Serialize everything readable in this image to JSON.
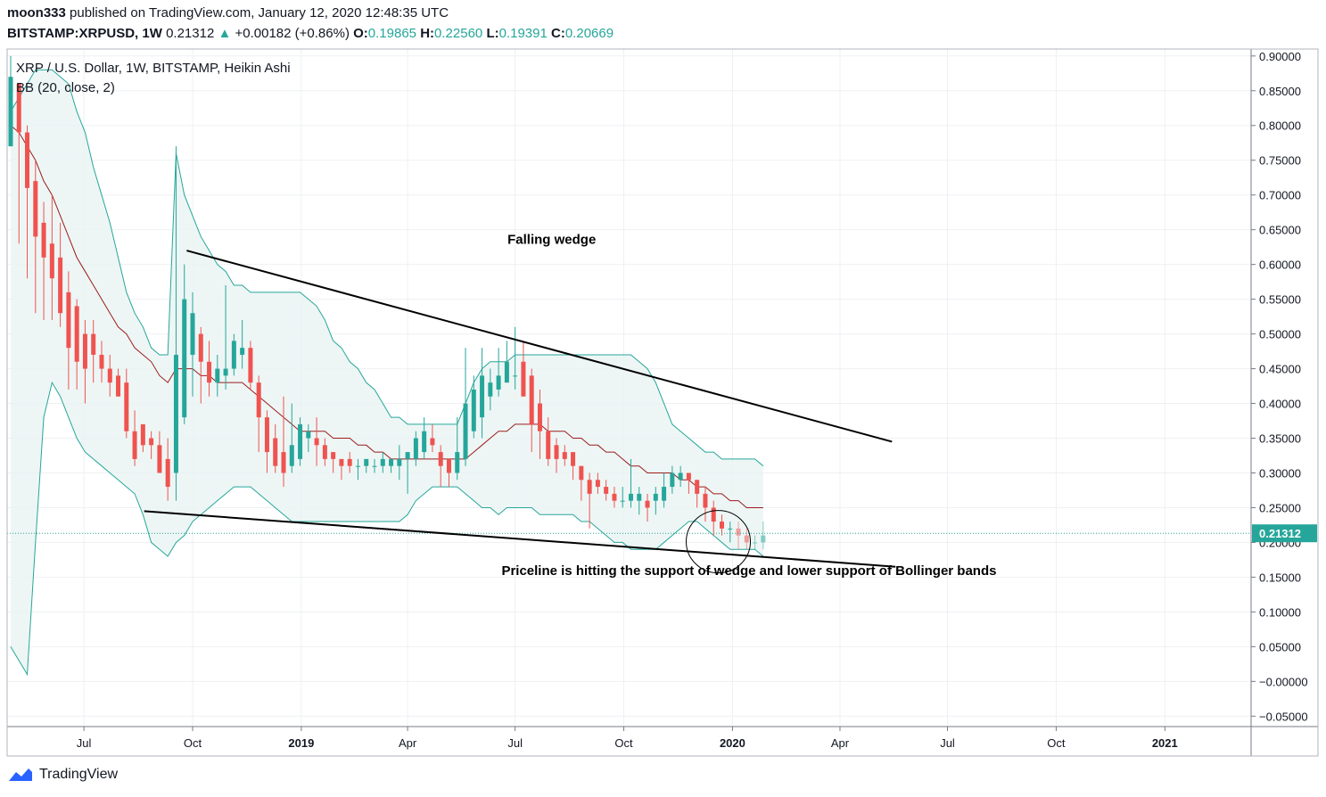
{
  "header": {
    "publisher": "moon333",
    "published_text": "published on TradingView.com, January 12, 2020 12:48:35 UTC",
    "symbol": "BITSTAMP:XRPUSD, 1W",
    "last": "0.21312",
    "change": "+0.00182 (+0.86%)",
    "ohlc": [
      {
        "k": "O:",
        "v": "0.19865"
      },
      {
        "k": "H:",
        "v": "0.22560"
      },
      {
        "k": "L:",
        "v": "0.19391"
      },
      {
        "k": "C:",
        "v": "0.20669"
      }
    ]
  },
  "footer": {
    "brand": "TradingView"
  },
  "colors": {
    "up": "#26a69a",
    "down": "#ef5350",
    "band_fill": "#e8f4f2",
    "band_line": "#26a69a",
    "basis": "#9c1c1c",
    "axis": "#787b86",
    "grid": "#eef0f3"
  },
  "chart_data": {
    "type": "candlestick",
    "title": "XRP / U.S. Dollar, 1W, BITSTAMP, Heikin Ashi",
    "indicator": "BB (20, close, 2)",
    "y_ticks": [
      "0.90000",
      "0.85000",
      "0.80000",
      "0.75000",
      "0.70000",
      "0.65000",
      "0.60000",
      "0.55000",
      "0.50000",
      "0.45000",
      "0.40000",
      "0.35000",
      "0.30000",
      "0.25000",
      "0.20000",
      "0.15000",
      "0.10000",
      "0.05000",
      "−0.00000",
      "−0.05000"
    ],
    "y_tick_values": [
      0.9,
      0.85,
      0.8,
      0.75,
      0.7,
      0.65,
      0.6,
      0.55,
      0.5,
      0.45,
      0.4,
      0.35,
      0.3,
      0.25,
      0.2,
      0.15,
      0.1,
      0.05,
      0,
      -0.05
    ],
    "ylim": [
      -0.065,
      0.91
    ],
    "x_range": [
      "2018-04-27",
      "2021-03-15"
    ],
    "x_ticks": [
      {
        "label": "Jul",
        "date": "2018-07-01",
        "bold": false
      },
      {
        "label": "Oct",
        "date": "2018-10-01",
        "bold": false
      },
      {
        "label": "2019",
        "date": "2019-01-01",
        "bold": true
      },
      {
        "label": "Apr",
        "date": "2019-04-01",
        "bold": false
      },
      {
        "label": "Jul",
        "date": "2019-07-01",
        "bold": false
      },
      {
        "label": "Oct",
        "date": "2019-10-01",
        "bold": false
      },
      {
        "label": "2020",
        "date": "2020-01-01",
        "bold": true
      },
      {
        "label": "Apr",
        "date": "2020-04-01",
        "bold": false
      },
      {
        "label": "Jul",
        "date": "2020-07-01",
        "bold": false
      },
      {
        "label": "Oct",
        "date": "2020-10-01",
        "bold": false
      },
      {
        "label": "2021",
        "date": "2021-01-01",
        "bold": true
      }
    ],
    "last_price": "0.21312",
    "last_price_value": 0.21312,
    "candles_start": "2018-04-30",
    "candles": [
      [
        0.77,
        0.87,
        0.9,
        0.77
      ],
      [
        0.86,
        0.79,
        0.82,
        0.63
      ],
      [
        0.79,
        0.71,
        0.8,
        0.58
      ],
      [
        0.72,
        0.64,
        0.75,
        0.53
      ],
      [
        0.66,
        0.61,
        0.69,
        0.52
      ],
      [
        0.63,
        0.58,
        0.7,
        0.52
      ],
      [
        0.61,
        0.53,
        0.66,
        0.51
      ],
      [
        0.56,
        0.48,
        0.59,
        0.42
      ],
      [
        0.54,
        0.46,
        0.55,
        0.42
      ],
      [
        0.5,
        0.45,
        0.52,
        0.4
      ],
      [
        0.5,
        0.47,
        0.52,
        0.43
      ],
      [
        0.47,
        0.45,
        0.49,
        0.43
      ],
      [
        0.45,
        0.43,
        0.47,
        0.41
      ],
      [
        0.44,
        0.41,
        0.45,
        0.41
      ],
      [
        0.43,
        0.36,
        0.45,
        0.35
      ],
      [
        0.36,
        0.32,
        0.39,
        0.31
      ],
      [
        0.37,
        0.34,
        0.37,
        0.33
      ],
      [
        0.35,
        0.34,
        0.36,
        0.32
      ],
      [
        0.34,
        0.3,
        0.36,
        0.3
      ],
      [
        0.32,
        0.28,
        0.35,
        0.26
      ],
      [
        0.3,
        0.47,
        0.77,
        0.26
      ],
      [
        0.38,
        0.55,
        0.6,
        0.37
      ],
      [
        0.47,
        0.53,
        0.56,
        0.41
      ],
      [
        0.5,
        0.46,
        0.51,
        0.4
      ],
      [
        0.46,
        0.43,
        0.49,
        0.41
      ],
      [
        0.43,
        0.45,
        0.47,
        0.41
      ],
      [
        0.44,
        0.45,
        0.57,
        0.42
      ],
      [
        0.45,
        0.49,
        0.5,
        0.44
      ],
      [
        0.47,
        0.48,
        0.52,
        0.45
      ],
      [
        0.48,
        0.43,
        0.49,
        0.42
      ],
      [
        0.43,
        0.38,
        0.44,
        0.33
      ],
      [
        0.38,
        0.33,
        0.39,
        0.3
      ],
      [
        0.35,
        0.31,
        0.37,
        0.3
      ],
      [
        0.33,
        0.3,
        0.41,
        0.28
      ],
      [
        0.31,
        0.34,
        0.4,
        0.3
      ],
      [
        0.32,
        0.37,
        0.38,
        0.31
      ],
      [
        0.35,
        0.36,
        0.37,
        0.33
      ],
      [
        0.35,
        0.34,
        0.38,
        0.31
      ],
      [
        0.34,
        0.32,
        0.35,
        0.31
      ],
      [
        0.33,
        0.32,
        0.33,
        0.3
      ],
      [
        0.32,
        0.31,
        0.32,
        0.29
      ],
      [
        0.32,
        0.31,
        0.33,
        0.3
      ],
      [
        0.31,
        0.31,
        0.32,
        0.29
      ],
      [
        0.31,
        0.32,
        0.32,
        0.3
      ],
      [
        0.31,
        0.31,
        0.32,
        0.3
      ],
      [
        0.31,
        0.32,
        0.33,
        0.3
      ],
      [
        0.31,
        0.32,
        0.32,
        0.3
      ],
      [
        0.31,
        0.32,
        0.34,
        0.29
      ],
      [
        0.32,
        0.33,
        0.33,
        0.27
      ],
      [
        0.32,
        0.35,
        0.36,
        0.31
      ],
      [
        0.33,
        0.36,
        0.38,
        0.32
      ],
      [
        0.35,
        0.34,
        0.37,
        0.33
      ],
      [
        0.33,
        0.31,
        0.34,
        0.28
      ],
      [
        0.32,
        0.3,
        0.32,
        0.28
      ],
      [
        0.3,
        0.33,
        0.38,
        0.29
      ],
      [
        0.32,
        0.4,
        0.48,
        0.31
      ],
      [
        0.36,
        0.42,
        0.44,
        0.35
      ],
      [
        0.38,
        0.44,
        0.48,
        0.35
      ],
      [
        0.41,
        0.43,
        0.45,
        0.39
      ],
      [
        0.42,
        0.44,
        0.48,
        0.41
      ],
      [
        0.43,
        0.46,
        0.49,
        0.43
      ],
      [
        0.44,
        0.44,
        0.51,
        0.42
      ],
      [
        0.46,
        0.41,
        0.49,
        0.41
      ],
      [
        0.44,
        0.37,
        0.45,
        0.33
      ],
      [
        0.4,
        0.36,
        0.42,
        0.32
      ],
      [
        0.36,
        0.32,
        0.38,
        0.31
      ],
      [
        0.34,
        0.32,
        0.35,
        0.3
      ],
      [
        0.33,
        0.32,
        0.34,
        0.31
      ],
      [
        0.33,
        0.31,
        0.32,
        0.29
      ],
      [
        0.31,
        0.29,
        0.31,
        0.26
      ],
      [
        0.29,
        0.27,
        0.3,
        0.22
      ],
      [
        0.29,
        0.28,
        0.3,
        0.27
      ],
      [
        0.28,
        0.27,
        0.29,
        0.26
      ],
      [
        0.27,
        0.26,
        0.28,
        0.25
      ],
      [
        0.26,
        0.26,
        0.28,
        0.25
      ],
      [
        0.26,
        0.27,
        0.32,
        0.25
      ],
      [
        0.26,
        0.27,
        0.28,
        0.24
      ],
      [
        0.26,
        0.25,
        0.27,
        0.23
      ],
      [
        0.26,
        0.27,
        0.28,
        0.24
      ],
      [
        0.26,
        0.28,
        0.3,
        0.25
      ],
      [
        0.28,
        0.3,
        0.31,
        0.27
      ],
      [
        0.29,
        0.3,
        0.31,
        0.28
      ],
      [
        0.3,
        0.29,
        0.3,
        0.27
      ],
      [
        0.29,
        0.27,
        0.29,
        0.25
      ],
      [
        0.27,
        0.25,
        0.28,
        0.23
      ],
      [
        0.25,
        0.23,
        0.26,
        0.21
      ],
      [
        0.23,
        0.22,
        0.24,
        0.21
      ],
      [
        0.22,
        0.22,
        0.23,
        0.2
      ],
      [
        0.22,
        0.21,
        0.23,
        0.19
      ],
      [
        0.21,
        0.2,
        0.22,
        0.19
      ],
      [
        0.2,
        0.2,
        0.21,
        0.19
      ],
      [
        0.2,
        0.21,
        0.23,
        0.19
      ]
    ],
    "bb_upper": [
      0.82,
      0.84,
      0.86,
      0.88,
      0.88,
      0.88,
      0.87,
      0.86,
      0.82,
      0.79,
      0.74,
      0.7,
      0.66,
      0.61,
      0.56,
      0.53,
      0.51,
      0.48,
      0.47,
      0.47,
      0.76,
      0.7,
      0.67,
      0.64,
      0.62,
      0.6,
      0.59,
      0.57,
      0.57,
      0.56,
      0.56,
      0.56,
      0.56,
      0.56,
      0.56,
      0.56,
      0.55,
      0.54,
      0.52,
      0.49,
      0.48,
      0.46,
      0.45,
      0.43,
      0.42,
      0.4,
      0.38,
      0.38,
      0.37,
      0.37,
      0.37,
      0.37,
      0.37,
      0.37,
      0.37,
      0.4,
      0.43,
      0.45,
      0.46,
      0.46,
      0.46,
      0.47,
      0.47,
      0.47,
      0.47,
      0.47,
      0.47,
      0.47,
      0.47,
      0.47,
      0.47,
      0.47,
      0.47,
      0.47,
      0.47,
      0.47,
      0.46,
      0.45,
      0.43,
      0.4,
      0.37,
      0.36,
      0.35,
      0.34,
      0.33,
      0.33,
      0.32,
      0.32,
      0.32,
      0.32,
      0.32,
      0.31
    ],
    "bb_basis": [
      0.8,
      0.79,
      0.77,
      0.75,
      0.72,
      0.7,
      0.67,
      0.64,
      0.61,
      0.59,
      0.57,
      0.55,
      0.53,
      0.51,
      0.5,
      0.48,
      0.47,
      0.46,
      0.44,
      0.43,
      0.45,
      0.45,
      0.45,
      0.44,
      0.44,
      0.43,
      0.43,
      0.43,
      0.43,
      0.42,
      0.41,
      0.4,
      0.39,
      0.38,
      0.37,
      0.36,
      0.36,
      0.36,
      0.36,
      0.35,
      0.35,
      0.35,
      0.34,
      0.34,
      0.33,
      0.33,
      0.32,
      0.32,
      0.32,
      0.32,
      0.32,
      0.32,
      0.32,
      0.32,
      0.32,
      0.32,
      0.33,
      0.34,
      0.35,
      0.36,
      0.36,
      0.37,
      0.37,
      0.37,
      0.37,
      0.36,
      0.36,
      0.36,
      0.35,
      0.35,
      0.34,
      0.34,
      0.33,
      0.33,
      0.32,
      0.31,
      0.31,
      0.3,
      0.3,
      0.3,
      0.3,
      0.29,
      0.29,
      0.28,
      0.28,
      0.27,
      0.27,
      0.26,
      0.26,
      0.25,
      0.25,
      0.25
    ],
    "bb_lower": [
      0.05,
      0.03,
      0.01,
      0.2,
      0.38,
      0.43,
      0.41,
      0.38,
      0.35,
      0.33,
      0.32,
      0.31,
      0.3,
      0.29,
      0.28,
      0.27,
      0.24,
      0.2,
      0.19,
      0.18,
      0.2,
      0.21,
      0.23,
      0.24,
      0.25,
      0.26,
      0.27,
      0.28,
      0.28,
      0.28,
      0.27,
      0.26,
      0.25,
      0.24,
      0.23,
      0.23,
      0.23,
      0.23,
      0.23,
      0.23,
      0.23,
      0.23,
      0.23,
      0.23,
      0.23,
      0.23,
      0.23,
      0.23,
      0.24,
      0.26,
      0.27,
      0.28,
      0.28,
      0.28,
      0.28,
      0.27,
      0.26,
      0.25,
      0.25,
      0.24,
      0.25,
      0.25,
      0.25,
      0.25,
      0.24,
      0.24,
      0.24,
      0.24,
      0.24,
      0.23,
      0.23,
      0.22,
      0.21,
      0.2,
      0.2,
      0.19,
      0.19,
      0.19,
      0.19,
      0.2,
      0.21,
      0.22,
      0.23,
      0.23,
      0.22,
      0.21,
      0.2,
      0.19,
      0.19,
      0.19,
      0.19,
      0.18
    ],
    "annotations": [
      {
        "text": "Falling wedge",
        "date": "2019-08-01",
        "y": 0.63
      },
      {
        "text": "Priceline is hitting the support of wedge and lower support of Bollinger bands",
        "date": "2020-01-15",
        "y": 0.153
      }
    ],
    "trendlines": [
      {
        "name": "wedge-upper-line",
        "from": [
          "2018-09-26",
          0.62
        ],
        "to": [
          "2020-05-15",
          0.345
        ]
      },
      {
        "name": "wedge-lower-line",
        "from": [
          "2018-08-21",
          0.245
        ],
        "to": [
          "2020-05-18",
          0.165
        ]
      }
    ],
    "highlight_circle": {
      "date": "2019-12-20",
      "y": 0.201
    }
  }
}
